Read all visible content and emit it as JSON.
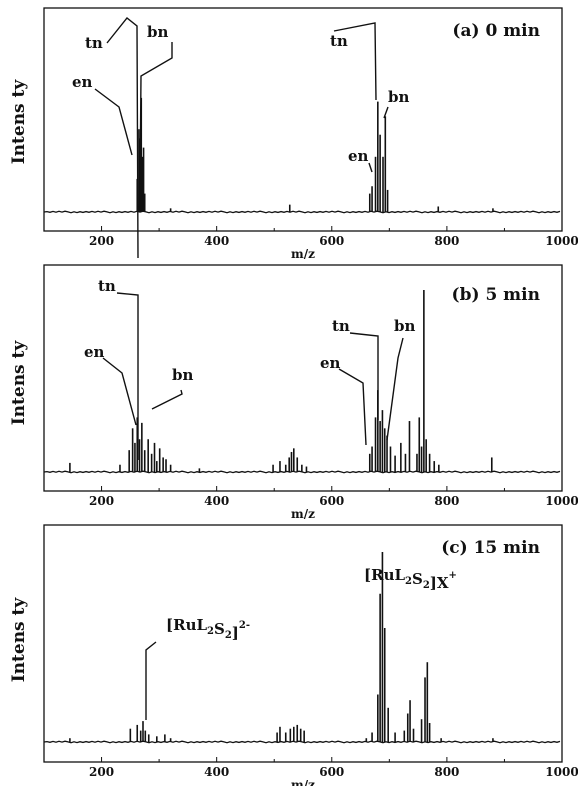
{
  "chart_data": [
    {
      "type": "line",
      "title": "(a) 0 min",
      "xlabel": "m/z",
      "ylabel": "Intens ty",
      "xlim": [
        100,
        1000
      ],
      "x_ticks": [
        200,
        400,
        600,
        800,
        1000
      ],
      "grid": false,
      "legend": "none",
      "series": [
        {
          "x": [
            262,
            265,
            267,
            269,
            271,
            273,
            275,
            320,
            527,
            666,
            670,
            676,
            680,
            684,
            689,
            693,
            697,
            785,
            880
          ],
          "y": [
            0.18,
            0.45,
            0.4,
            0.62,
            0.3,
            0.35,
            0.1,
            0.02,
            0.04,
            0.1,
            0.14,
            0.3,
            0.6,
            0.42,
            0.3,
            0.52,
            0.12,
            0.03,
            0.02
          ]
        }
      ],
      "annotations": [
        {
          "text": "tn",
          "x": 267
        },
        {
          "text": "bn",
          "x": 269
        },
        {
          "text": "en",
          "x": 262
        },
        {
          "text": "tn",
          "x": 680
        },
        {
          "text": "bn",
          "x": 693
        },
        {
          "text": "en",
          "x": 676
        }
      ]
    },
    {
      "type": "line",
      "title": "(b) 5 min",
      "xlabel": "m/z",
      "ylabel": "Intens ty",
      "xlim": [
        100,
        1000
      ],
      "x_ticks": [
        200,
        400,
        600,
        800,
        1000
      ],
      "grid": false,
      "legend": "none",
      "series": [
        {
          "x": [
            145,
            232,
            248,
            254,
            258,
            262,
            266,
            270,
            275,
            281,
            287,
            292,
            296,
            301,
            307,
            312,
            320,
            370,
            498,
            510,
            520,
            526,
            530,
            534,
            540,
            548,
            556,
            666,
            670,
            676,
            680,
            684,
            688,
            692,
            696,
            702,
            710,
            720,
            728,
            735,
            748,
            752,
            756,
            760,
            764,
            770,
            778,
            786,
            878
          ],
          "y": [
            0.05,
            0.04,
            0.12,
            0.24,
            0.16,
            0.3,
            0.18,
            0.27,
            0.12,
            0.18,
            0.1,
            0.16,
            0.06,
            0.13,
            0.08,
            0.07,
            0.04,
            0.02,
            0.04,
            0.06,
            0.04,
            0.08,
            0.11,
            0.13,
            0.08,
            0.04,
            0.03,
            0.1,
            0.14,
            0.3,
            0.45,
            0.28,
            0.34,
            0.24,
            0.2,
            0.14,
            0.09,
            0.16,
            0.1,
            0.28,
            0.1,
            0.3,
            0.14,
            1.0,
            0.18,
            0.1,
            0.06,
            0.04,
            0.08
          ]
        }
      ],
      "annotations": [
        {
          "text": "tn",
          "x": 266
        },
        {
          "text": "bn",
          "x": 270
        },
        {
          "text": "en",
          "x": 262
        },
        {
          "text": "tn",
          "x": 680
        },
        {
          "text": "bn",
          "x": 688
        },
        {
          "text": "en",
          "x": 676
        }
      ]
    },
    {
      "type": "line",
      "title": "(c) 15 min",
      "xlabel": "m/z",
      "ylabel": "Intens ty",
      "xlim": [
        100,
        1000
      ],
      "x_ticks": [
        200,
        400,
        600,
        800,
        1000
      ],
      "grid": false,
      "legend": "none",
      "series": [
        {
          "x": [
            145,
            250,
            262,
            268,
            272,
            276,
            282,
            296,
            310,
            320,
            505,
            510,
            520,
            528,
            534,
            540,
            546,
            552,
            660,
            670,
            680,
            684,
            688,
            692,
            698,
            710,
            726,
            732,
            736,
            742,
            756,
            762,
            766,
            770,
            790,
            880
          ],
          "y": [
            0.02,
            0.07,
            0.09,
            0.06,
            0.11,
            0.06,
            0.04,
            0.03,
            0.04,
            0.02,
            0.05,
            0.08,
            0.05,
            0.07,
            0.08,
            0.09,
            0.07,
            0.06,
            0.02,
            0.05,
            0.25,
            0.78,
            1.0,
            0.6,
            0.18,
            0.05,
            0.06,
            0.15,
            0.22,
            0.07,
            0.12,
            0.34,
            0.42,
            0.1,
            0.02,
            0.02
          ]
        }
      ],
      "annotations": [
        {
          "text": "[RuL₂S₂]X⁺",
          "x": 688
        },
        {
          "text": "[RuL₂S₂]²⁻",
          "x": 276
        }
      ]
    }
  ]
}
